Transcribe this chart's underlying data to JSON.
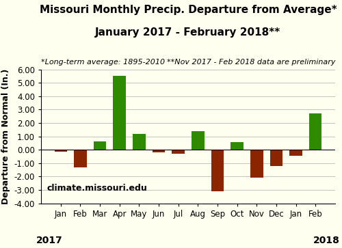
{
  "title_line1": "Missouri Monthly Precip. Departure from Average*",
  "title_line2": "January 2017 - February 2018**",
  "subtitle_left": "*Long-term average: 1895-2010",
  "subtitle_right": "**Nov 2017 - Feb 2018 data are preliminary",
  "watermark": "climate.missouri.edu",
  "ylabel": "Departure from Normal (In.)",
  "categories": [
    "Jan",
    "Feb",
    "Mar",
    "Apr",
    "May",
    "Jun",
    "Jul",
    "Aug",
    "Sep",
    "Oct",
    "Nov",
    "Dec",
    "Jan",
    "Feb"
  ],
  "values": [
    -0.15,
    -1.3,
    0.65,
    5.5,
    1.2,
    -0.2,
    -0.3,
    1.4,
    -3.1,
    0.55,
    -2.1,
    -1.2,
    -0.45,
    2.7
  ],
  "colors": [
    "#8B2500",
    "#8B2500",
    "#2E8B00",
    "#2E8B00",
    "#2E8B00",
    "#8B2500",
    "#8B2500",
    "#2E8B00",
    "#8B2500",
    "#2E8B00",
    "#8B2500",
    "#8B2500",
    "#8B2500",
    "#2E8B00"
  ],
  "ylim": [
    -4.0,
    6.0
  ],
  "yticks": [
    -4.0,
    -3.0,
    -2.0,
    -1.0,
    0.0,
    1.0,
    2.0,
    3.0,
    4.0,
    5.0,
    6.0
  ],
  "background_color": "#FFFFF0",
  "grid_color": "#AAAAAA",
  "title_fontsize": 11,
  "subtitle_fontsize": 8,
  "tick_fontsize": 8.5,
  "year_fontsize": 10,
  "ylabel_fontsize": 9,
  "watermark_fontsize": 9
}
